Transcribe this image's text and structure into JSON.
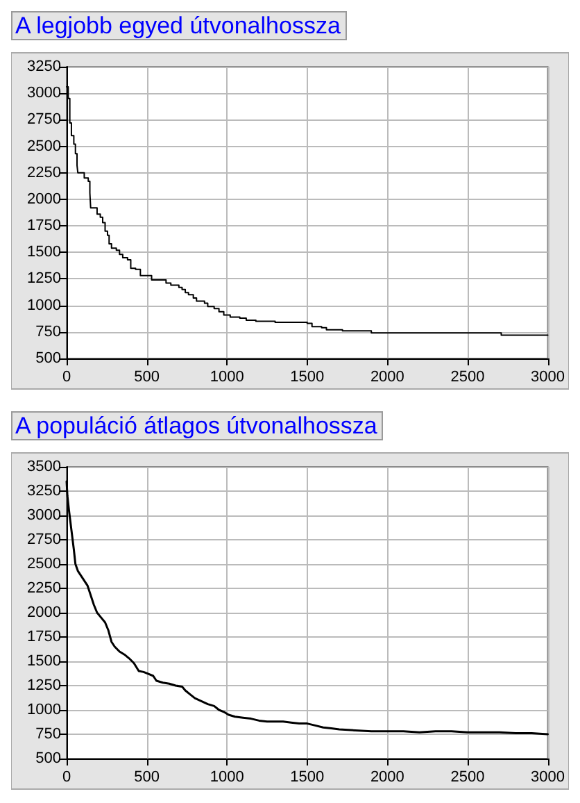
{
  "chart_data": [
    {
      "type": "step",
      "title": "A legjobb egyed útvonalhossza",
      "x": [
        0,
        10,
        20,
        30,
        45,
        55,
        65,
        70,
        100,
        110,
        135,
        145,
        150,
        180,
        190,
        210,
        225,
        240,
        255,
        265,
        280,
        310,
        330,
        350,
        380,
        400,
        430,
        460,
        520,
        530,
        590,
        620,
        650,
        700,
        720,
        740,
        760,
        790,
        810,
        860,
        880,
        920,
        950,
        980,
        1020,
        1080,
        1120,
        1180,
        1300,
        1500,
        1530,
        1590,
        1620,
        1720,
        1900,
        2700,
        2710,
        3000
      ],
      "series": [
        {
          "color": "#000000",
          "values": [
            3060,
            2950,
            2720,
            2600,
            2520,
            2430,
            2320,
            2250,
            2250,
            2200,
            2170,
            2060,
            1920,
            1920,
            1860,
            1830,
            1780,
            1700,
            1660,
            1580,
            1540,
            1520,
            1480,
            1450,
            1430,
            1350,
            1340,
            1280,
            1280,
            1240,
            1240,
            1210,
            1190,
            1170,
            1150,
            1120,
            1100,
            1070,
            1040,
            1020,
            990,
            970,
            940,
            910,
            890,
            880,
            860,
            850,
            840,
            830,
            800,
            790,
            770,
            760,
            740,
            740,
            720,
            720
          ]
        }
      ],
      "xlim": [
        0,
        3000
      ],
      "xticks": [
        0,
        500,
        1000,
        1500,
        2000,
        2500,
        3000
      ],
      "ylim": [
        500,
        3250
      ],
      "yticks": [
        500,
        750,
        1000,
        1250,
        1500,
        1750,
        2000,
        2250,
        2500,
        2750,
        3000,
        3250
      ],
      "grid": true,
      "marker": "none",
      "line_style": "solid"
    },
    {
      "type": "line",
      "title": "A populáció átlagos útvonalhossza",
      "x": [
        0,
        5,
        15,
        30,
        45,
        55,
        70,
        90,
        110,
        130,
        150,
        170,
        190,
        210,
        240,
        260,
        280,
        300,
        330,
        360,
        390,
        420,
        450,
        480,
        510,
        540,
        560,
        600,
        640,
        680,
        720,
        740,
        770,
        800,
        840,
        880,
        920,
        950,
        980,
        1010,
        1050,
        1100,
        1150,
        1200,
        1250,
        1300,
        1350,
        1400,
        1450,
        1500,
        1550,
        1600,
        1650,
        1700,
        1800,
        1900,
        2000,
        2100,
        2200,
        2300,
        2400,
        2500,
        2600,
        2700,
        2800,
        2900,
        3000
      ],
      "series": [
        {
          "color": "#000000",
          "values": [
            3350,
            3200,
            3050,
            2850,
            2650,
            2500,
            2430,
            2380,
            2330,
            2280,
            2180,
            2080,
            2000,
            1960,
            1900,
            1820,
            1700,
            1650,
            1600,
            1570,
            1530,
            1480,
            1400,
            1390,
            1370,
            1350,
            1300,
            1280,
            1270,
            1250,
            1240,
            1200,
            1160,
            1120,
            1090,
            1060,
            1040,
            1000,
            980,
            950,
            930,
            920,
            910,
            890,
            880,
            880,
            880,
            870,
            860,
            860,
            840,
            820,
            810,
            800,
            790,
            780,
            780,
            780,
            770,
            780,
            780,
            770,
            770,
            770,
            760,
            760,
            750
          ]
        }
      ],
      "xlim": [
        0,
        3000
      ],
      "xticks": [
        0,
        500,
        1000,
        1500,
        2000,
        2500,
        3000
      ],
      "ylim": [
        500,
        3500
      ],
      "yticks": [
        500,
        750,
        1000,
        1250,
        1500,
        1750,
        2000,
        2250,
        2500,
        2750,
        3000,
        3250,
        3500
      ],
      "grid": true,
      "marker": "none",
      "line_style": "solid"
    }
  ]
}
